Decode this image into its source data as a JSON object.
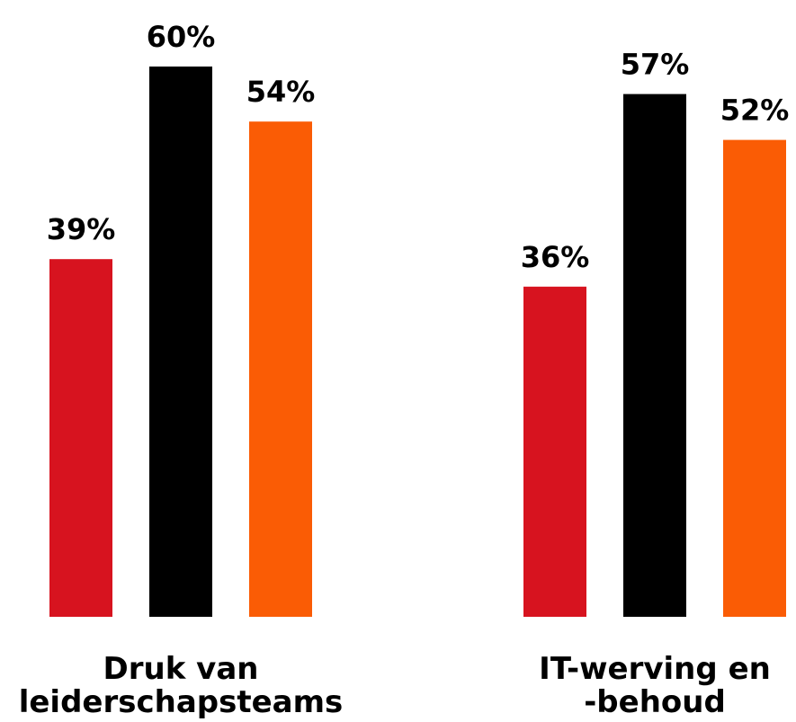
{
  "chart_data": {
    "type": "bar",
    "categories": [
      [
        "Druk van",
        "leiderschapsteams"
      ],
      [
        "IT-werving en",
        "-behoud"
      ]
    ],
    "series": [
      {
        "color": "#d7131f",
        "values": [
          39,
          36
        ],
        "labels": [
          "39%",
          "36%"
        ]
      },
      {
        "color": "#000000",
        "values": [
          60,
          57
        ],
        "labels": [
          "60%",
          "57%"
        ]
      },
      {
        "color": "#fa5c05",
        "values": [
          54,
          52
        ],
        "labels": [
          "54%",
          "52%"
        ]
      }
    ],
    "ylim": [
      0,
      60
    ],
    "grid": false,
    "legend": "none",
    "title": "",
    "xlabel": "",
    "ylabel": ""
  }
}
